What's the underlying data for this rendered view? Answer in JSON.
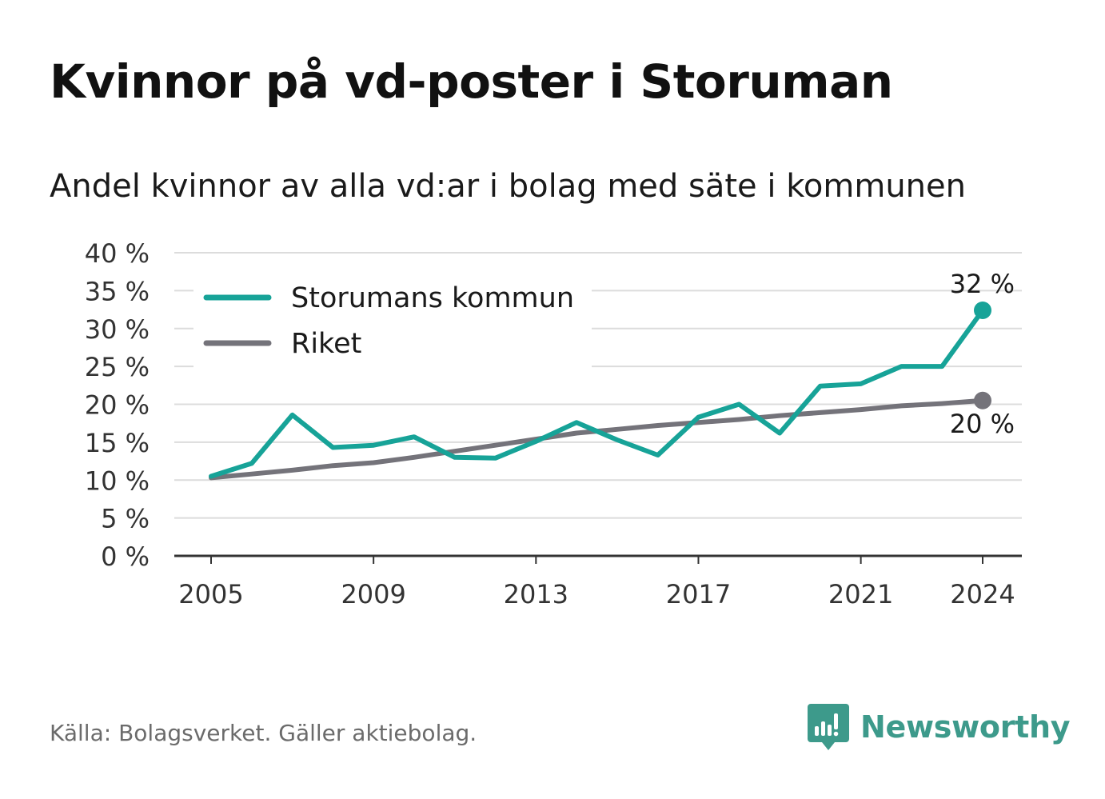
{
  "title": "Kvinnor på vd-poster i Storuman",
  "subtitle": "Andel kvinnor av alla vd:ar i bolag med säte i kommunen",
  "source": "Källa: Bolagsverket. Gäller aktiebolag.",
  "brand": {
    "name": "Newsworthy",
    "icon": "newsworthy-logo-icon",
    "color": "#3d9a8b"
  },
  "chart_data": {
    "type": "line",
    "x": [
      2005,
      2006,
      2007,
      2008,
      2009,
      2010,
      2011,
      2012,
      2013,
      2014,
      2015,
      2016,
      2017,
      2018,
      2019,
      2020,
      2021,
      2022,
      2023,
      2024
    ],
    "xticks": [
      2005,
      2009,
      2013,
      2017,
      2021,
      2024
    ],
    "ylim": [
      0,
      40
    ],
    "yticks": [
      0,
      5,
      10,
      15,
      20,
      25,
      30,
      35,
      40
    ],
    "ytick_labels": [
      "0 %",
      "5 %",
      "10 %",
      "15 %",
      "20 %",
      "25 %",
      "30 %",
      "35 %",
      "40 %"
    ],
    "grid": true,
    "legend_position": "top-left",
    "series": [
      {
        "name": "Storumans kommun",
        "color": "#17a398",
        "values": [
          10.5,
          12.2,
          18.6,
          14.3,
          14.6,
          15.7,
          13.0,
          12.9,
          15.1,
          17.6,
          15.3,
          13.3,
          18.3,
          20.0,
          16.2,
          22.4,
          22.7,
          25.0,
          25.0,
          32.4
        ],
        "end_label": "32 %"
      },
      {
        "name": "Riket",
        "color": "#74737a",
        "values": [
          10.3,
          10.8,
          11.3,
          11.9,
          12.3,
          13.0,
          13.8,
          14.6,
          15.4,
          16.2,
          16.7,
          17.2,
          17.6,
          18.0,
          18.5,
          18.9,
          19.3,
          19.8,
          20.1,
          20.5
        ],
        "end_label": "20 %"
      }
    ]
  }
}
